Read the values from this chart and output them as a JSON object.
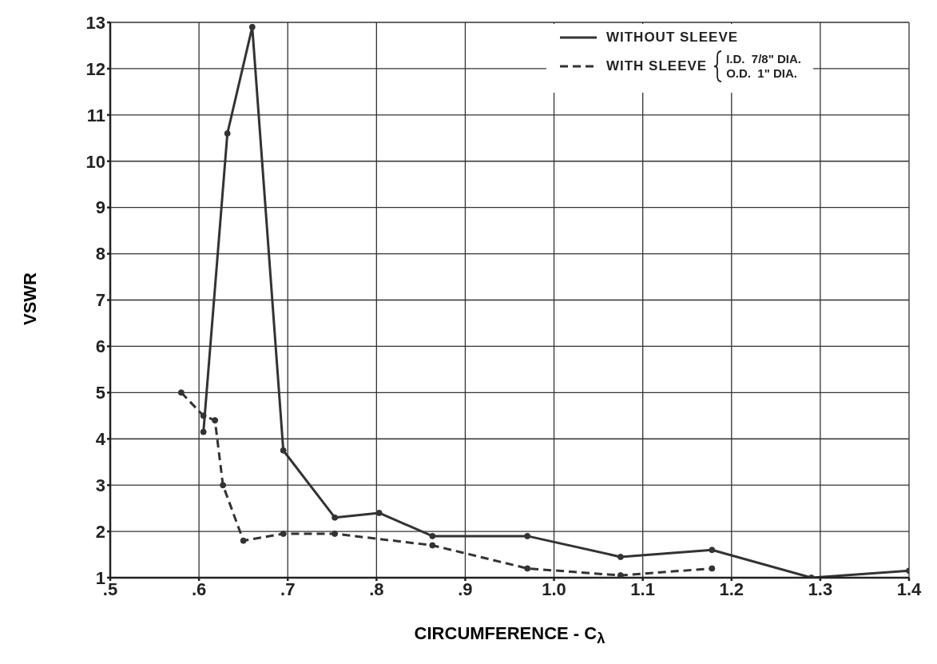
{
  "chart_data": {
    "type": "line",
    "xlabel": "CIRCUMFERENCE - C$_{λ}$",
    "ylabel": "VSWR",
    "xlim": [
      0.5,
      1.4
    ],
    "ylim": [
      1,
      13
    ],
    "xticks": [
      {
        "value": 0.5,
        "label": ".5"
      },
      {
        "value": 0.6,
        "label": ".6"
      },
      {
        "value": 0.7,
        "label": ".7"
      },
      {
        "value": 0.8,
        "label": ".8"
      },
      {
        "value": 0.9,
        "label": ".9"
      },
      {
        "value": 1.0,
        "label": "1.0"
      },
      {
        "value": 1.1,
        "label": "1.1"
      },
      {
        "value": 1.2,
        "label": "1.2"
      },
      {
        "value": 1.3,
        "label": "1.3"
      },
      {
        "value": 1.4,
        "label": "1.4"
      }
    ],
    "yticks": [
      1,
      2,
      3,
      4,
      5,
      6,
      7,
      8,
      9,
      10,
      11,
      12,
      13
    ],
    "grid": true,
    "legend": "top right",
    "marker": "circle",
    "series": [
      {
        "name": "WITHOUT SLEEVE",
        "color": "#333333",
        "line_style": "solid",
        "x": [
          0.605,
          0.632,
          0.66,
          0.695,
          0.753,
          0.803,
          0.863,
          0.97,
          1.075,
          1.178,
          1.29,
          1.4
        ],
        "values": [
          4.15,
          10.6,
          12.9,
          3.75,
          2.3,
          2.4,
          1.9,
          1.9,
          1.45,
          1.6,
          1.0,
          1.15
        ]
      },
      {
        "name": "WITH SLEEVE",
        "color": "#333333",
        "line_style": "dashed",
        "x": [
          0.58,
          0.605,
          0.618,
          0.627,
          0.65,
          0.695,
          0.753,
          0.863,
          0.97,
          1.075,
          1.178
        ],
        "values": [
          5.0,
          4.5,
          4.4,
          3.0,
          1.8,
          1.95,
          1.95,
          1.7,
          1.2,
          1.05,
          1.2
        ]
      }
    ],
    "annotations": [
      "I.D.  7/8\" DIA.",
      "O.D.  1\" DIA."
    ]
  }
}
